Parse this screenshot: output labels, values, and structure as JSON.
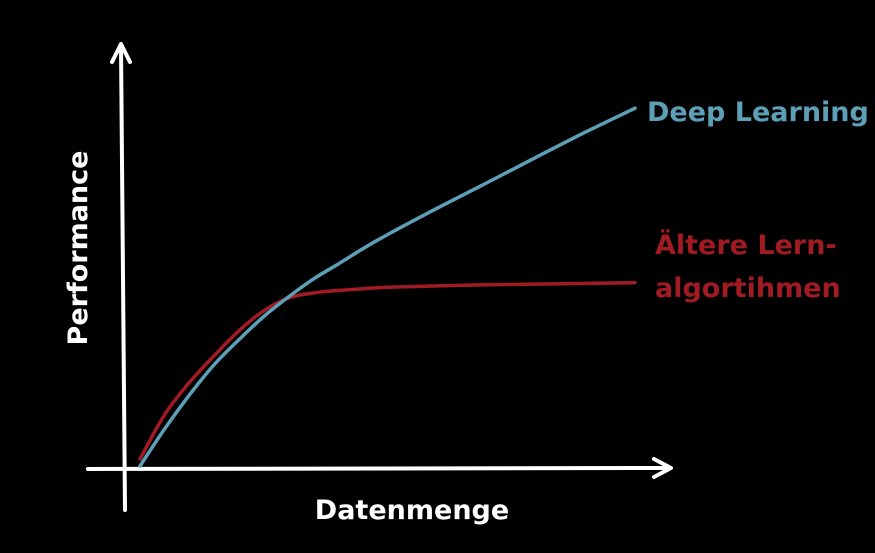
{
  "colors": {
    "background": "#000000",
    "axis": "#ffffff",
    "deep_learning": "#5e9fb8",
    "older_algorithms": "#a01c22"
  },
  "chart_data": {
    "type": "line",
    "xlabel": "Datenmenge",
    "ylabel": "Performance",
    "xlim": [
      0,
      100
    ],
    "ylim": [
      0,
      100
    ],
    "ticks": "none",
    "grid": false,
    "legend": "inline labels at right end of each curve",
    "series": [
      {
        "name": "Deep Learning",
        "label_lines": [
          "Deep Learning"
        ],
        "color": "#5e9fb8",
        "x": [
          0,
          5,
          10,
          15,
          20,
          25,
          30,
          35,
          40,
          45,
          50,
          60,
          70,
          80,
          90,
          100
        ],
        "y": [
          0,
          10.5,
          20,
          28.5,
          35.5,
          42,
          47.5,
          52.5,
          56.7,
          61,
          65,
          72.4,
          79.5,
          86.7,
          93.8,
          100.5
        ]
      },
      {
        "name": "Ältere Lern-algortihmen",
        "label_lines": [
          "Ältere Lern-",
          "algortihmen"
        ],
        "color": "#a01c22",
        "x": [
          0,
          5,
          10,
          15,
          20,
          25,
          30,
          35,
          40,
          45,
          50,
          60,
          70,
          80,
          90,
          100
        ],
        "y": [
          2,
          14.5,
          23.5,
          31,
          38,
          43.6,
          47.2,
          48.6,
          49.3,
          49.8,
          50.2,
          50.6,
          50.9,
          51.1,
          51.3,
          51.5
        ]
      }
    ]
  }
}
